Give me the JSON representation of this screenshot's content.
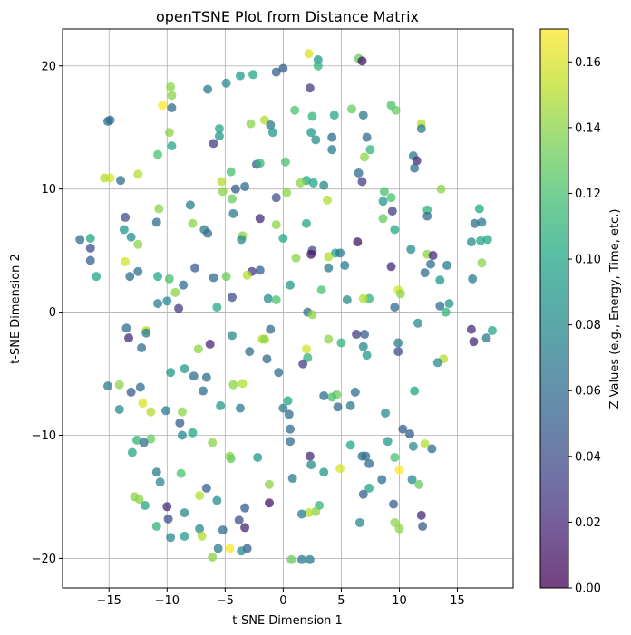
{
  "chart_data": {
    "type": "scatter",
    "title": "openTSNE Plot from Distance Matrix",
    "xlabel": "t-SNE Dimension 1",
    "ylabel": "t-SNE Dimension 2",
    "colorbar_label": "Z Values (e.g., Energy, Time, etc.)",
    "xlim": [
      -19,
      19.8
    ],
    "ylim": [
      -22.4,
      23
    ],
    "clim": [
      0,
      0.17
    ],
    "xticks": [
      -15,
      -10,
      -5,
      0,
      5,
      10,
      15
    ],
    "yticks": [
      -20,
      -10,
      0,
      10,
      20
    ],
    "cticks": [
      0.0,
      0.02,
      0.04,
      0.06,
      0.08,
      0.1,
      0.12,
      0.14,
      0.16
    ],
    "xtick_labels": [
      "−15",
      "−10",
      "−5",
      "0",
      "5",
      "10",
      "15"
    ],
    "ytick_labels": [
      "−20",
      "−10",
      "0",
      "10",
      "20"
    ],
    "ctick_labels": [
      "0.00",
      "0.02",
      "0.04",
      "0.06",
      "0.08",
      "0.10",
      "0.12",
      "0.14",
      "0.16"
    ],
    "grid": true,
    "colormap": "viridis",
    "marker_alpha": 0.75,
    "points": [
      [
        2.2,
        21.0,
        0.16
      ],
      [
        6.5,
        20.6,
        0.13
      ],
      [
        6.8,
        20.4,
        0.01
      ],
      [
        3.0,
        20.5,
        0.09
      ],
      [
        3.0,
        20.0,
        0.11
      ],
      [
        0.0,
        19.8,
        0.05
      ],
      [
        -0.6,
        19.5,
        0.05
      ],
      [
        -3.7,
        19.2,
        0.09
      ],
      [
        -2.6,
        19.3,
        0.1
      ],
      [
        -4.9,
        18.6,
        0.08
      ],
      [
        -9.7,
        18.3,
        0.14
      ],
      [
        -6.5,
        18.1,
        0.07
      ],
      [
        2.3,
        18.2,
        0.03
      ],
      [
        -9.6,
        17.6,
        0.14
      ],
      [
        -10.4,
        16.8,
        0.17
      ],
      [
        -9.6,
        16.6,
        0.06
      ],
      [
        9.3,
        16.8,
        0.12
      ],
      [
        9.7,
        16.4,
        0.13
      ],
      [
        5.9,
        16.5,
        0.13
      ],
      [
        1.0,
        16.4,
        0.12
      ],
      [
        -14.9,
        15.6,
        0.06
      ],
      [
        -15.1,
        15.5,
        0.06
      ],
      [
        -1.6,
        15.6,
        0.15
      ],
      [
        2.5,
        15.9,
        0.11
      ],
      [
        4.4,
        16.0,
        0.1
      ],
      [
        6.9,
        16.0,
        0.07
      ],
      [
        11.9,
        15.3,
        0.15
      ],
      [
        -2.8,
        15.3,
        0.14
      ],
      [
        -1.1,
        15.2,
        0.07
      ],
      [
        11.9,
        14.9,
        0.07
      ],
      [
        -5.5,
        14.9,
        0.1
      ],
      [
        -9.8,
        14.6,
        0.14
      ],
      [
        -0.9,
        14.6,
        0.09
      ],
      [
        2.4,
        14.6,
        0.09
      ],
      [
        -5.5,
        14.3,
        0.09
      ],
      [
        4.2,
        14.2,
        0.06
      ],
      [
        7.2,
        14.2,
        0.06
      ],
      [
        2.8,
        14.0,
        0.08
      ],
      [
        -9.6,
        13.5,
        0.1
      ],
      [
        -6.0,
        13.7,
        0.03
      ],
      [
        7.5,
        13.2,
        0.11
      ],
      [
        4.2,
        13.2,
        0.07
      ],
      [
        -10.8,
        12.8,
        0.12
      ],
      [
        11.2,
        12.7,
        0.07
      ],
      [
        7.0,
        12.6,
        0.14
      ],
      [
        11.5,
        12.3,
        0.02
      ],
      [
        -2.3,
        12.0,
        0.05
      ],
      [
        -2.0,
        12.1,
        0.11
      ],
      [
        0.2,
        12.2,
        0.12
      ],
      [
        11.3,
        11.7,
        0.06
      ],
      [
        -4.5,
        11.4,
        0.12
      ],
      [
        6.5,
        11.3,
        0.06
      ],
      [
        -12.5,
        11.2,
        0.15
      ],
      [
        -14.9,
        10.9,
        0.16
      ],
      [
        -15.4,
        10.9,
        0.15
      ],
      [
        -14.0,
        10.7,
        0.06
      ],
      [
        -5.3,
        10.6,
        0.15
      ],
      [
        2.0,
        10.7,
        0.1
      ],
      [
        1.5,
        10.5,
        0.14
      ],
      [
        6.8,
        10.6,
        0.03
      ],
      [
        3.5,
        10.3,
        0.08
      ],
      [
        2.6,
        10.5,
        0.1
      ],
      [
        -3.3,
        10.2,
        0.06
      ],
      [
        -4.1,
        10.0,
        0.05
      ],
      [
        -5.2,
        9.8,
        0.14
      ],
      [
        8.7,
        9.8,
        0.12
      ],
      [
        13.6,
        10.0,
        0.14
      ],
      [
        0.3,
        9.7,
        0.14
      ],
      [
        -4.4,
        9.2,
        0.13
      ],
      [
        -0.6,
        9.3,
        0.04
      ],
      [
        9.3,
        9.3,
        0.12
      ],
      [
        8.6,
        9.0,
        0.09
      ],
      [
        3.8,
        9.1,
        0.15
      ],
      [
        -10.7,
        8.4,
        0.14
      ],
      [
        12.4,
        8.3,
        0.11
      ],
      [
        -8.0,
        8.7,
        0.07
      ],
      [
        16.9,
        8.4,
        0.1
      ],
      [
        -4.3,
        8.0,
        0.07
      ],
      [
        9.4,
        8.2,
        0.03
      ],
      [
        -13.6,
        7.7,
        0.04
      ],
      [
        12.4,
        7.8,
        0.06
      ],
      [
        8.6,
        7.6,
        0.13
      ],
      [
        -2.0,
        7.6,
        0.02
      ],
      [
        -10.9,
        7.3,
        0.06
      ],
      [
        -7.8,
        7.2,
        0.14
      ],
      [
        16.5,
        7.2,
        0.06
      ],
      [
        17.1,
        7.3,
        0.07
      ],
      [
        -0.6,
        7.1,
        0.14
      ],
      [
        2.0,
        7.2,
        0.1
      ],
      [
        9.6,
        6.7,
        0.1
      ],
      [
        -13.7,
        6.7,
        0.09
      ],
      [
        -6.8,
        6.7,
        0.07
      ],
      [
        -6.5,
        6.4,
        0.06
      ],
      [
        -3.5,
        6.2,
        0.14
      ],
      [
        -3.6,
        5.9,
        0.08
      ],
      [
        -13.1,
        6.1,
        0.08
      ],
      [
        -16.6,
        6.0,
        0.1
      ],
      [
        -17.5,
        5.9,
        0.06
      ],
      [
        0.0,
        6.0,
        0.1
      ],
      [
        -12.5,
        5.5,
        0.14
      ],
      [
        6.4,
        5.7,
        0.01
      ],
      [
        16.2,
        5.7,
        0.08
      ],
      [
        17.6,
        5.9,
        0.1
      ],
      [
        17.0,
        5.8,
        0.1
      ],
      [
        11.0,
        5.1,
        0.08
      ],
      [
        -16.6,
        5.2,
        0.04
      ],
      [
        2.5,
        5.0,
        0.04
      ],
      [
        4.5,
        4.8,
        0.1
      ],
      [
        4.9,
        4.8,
        0.07
      ],
      [
        2.4,
        4.7,
        0.01
      ],
      [
        12.4,
        4.7,
        0.14
      ],
      [
        12.9,
        4.6,
        0.02
      ],
      [
        3.9,
        4.5,
        0.15
      ],
      [
        1.1,
        4.4,
        0.14
      ],
      [
        -16.6,
        4.2,
        0.05
      ],
      [
        -13.6,
        4.1,
        0.16
      ],
      [
        12.7,
        3.9,
        0.06
      ],
      [
        17.1,
        4.0,
        0.14
      ],
      [
        14.1,
        3.8,
        0.07
      ],
      [
        5.3,
        3.8,
        0.07
      ],
      [
        -7.6,
        3.6,
        0.05
      ],
      [
        -2.0,
        3.4,
        0.05
      ],
      [
        -2.7,
        3.3,
        0.03
      ],
      [
        3.9,
        3.6,
        0.07
      ],
      [
        9.3,
        3.7,
        0.02
      ],
      [
        12.2,
        3.2,
        0.06
      ],
      [
        -12.5,
        3.3,
        0.06
      ],
      [
        -3.1,
        3.0,
        0.15
      ],
      [
        -4.9,
        2.9,
        0.13
      ],
      [
        -16.1,
        2.9,
        0.1
      ],
      [
        -13.2,
        2.9,
        0.06
      ],
      [
        -10.8,
        2.9,
        0.1
      ],
      [
        -6.0,
        2.8,
        0.06
      ],
      [
        16.3,
        2.7,
        0.07
      ],
      [
        13.5,
        2.6,
        0.09
      ],
      [
        0.6,
        2.2,
        0.09
      ],
      [
        -8.6,
        2.2,
        0.06
      ],
      [
        -9.8,
        2.7,
        0.12
      ],
      [
        -9.3,
        1.6,
        0.14
      ],
      [
        3.3,
        1.8,
        0.12
      ],
      [
        9.9,
        1.8,
        0.16
      ],
      [
        10.1,
        1.5,
        0.14
      ],
      [
        -4.4,
        1.2,
        0.04
      ],
      [
        -10.0,
        0.9,
        0.08
      ],
      [
        -10.8,
        0.7,
        0.07
      ],
      [
        -1.3,
        1.1,
        0.08
      ],
      [
        -0.6,
        1.0,
        0.12
      ],
      [
        5.5,
        1.0,
        0.08
      ],
      [
        7.4,
        1.1,
        0.11
      ],
      [
        6.9,
        1.1,
        0.15
      ],
      [
        13.5,
        0.5,
        0.06
      ],
      [
        14.3,
        0.7,
        0.09
      ],
      [
        -5.7,
        0.4,
        0.1
      ],
      [
        -9.0,
        0.3,
        0.03
      ],
      [
        9.6,
        0.4,
        0.06
      ],
      [
        14.0,
        0.0,
        0.11
      ],
      [
        2.1,
        0.0,
        0.06
      ],
      [
        2.5,
        -0.2,
        0.14
      ],
      [
        11.6,
        -0.9,
        0.08
      ],
      [
        -13.5,
        -1.3,
        0.06
      ],
      [
        -11.8,
        -1.5,
        0.15
      ],
      [
        -1.1,
        -1.4,
        0.06
      ],
      [
        6.3,
        -1.8,
        0.03
      ],
      [
        16.2,
        -1.4,
        0.02
      ],
      [
        18.0,
        -1.5,
        0.1
      ],
      [
        -11.8,
        -1.7,
        0.07
      ],
      [
        -4.4,
        -1.9,
        0.08
      ],
      [
        7.0,
        -1.8,
        0.05
      ],
      [
        17.5,
        -2.1,
        0.07
      ],
      [
        -13.3,
        -2.1,
        0.02
      ],
      [
        -1.8,
        -2.2,
        0.15
      ],
      [
        -1.6,
        -2.2,
        0.14
      ],
      [
        3.9,
        -2.2,
        0.14
      ],
      [
        9.9,
        -2.5,
        0.07
      ],
      [
        16.4,
        -2.4,
        0.02
      ],
      [
        -6.3,
        -2.6,
        0.02
      ],
      [
        5.0,
        -2.5,
        0.11
      ],
      [
        6.9,
        -2.8,
        0.08
      ],
      [
        -12.2,
        -2.9,
        0.06
      ],
      [
        -7.3,
        -3.0,
        0.14
      ],
      [
        2.0,
        -3.0,
        0.16
      ],
      [
        9.9,
        -3.2,
        0.04
      ],
      [
        -2.9,
        -3.2,
        0.06
      ],
      [
        7.2,
        -3.5,
        0.09
      ],
      [
        -1.4,
        -3.8,
        0.06
      ],
      [
        2.1,
        -3.7,
        0.11
      ],
      [
        13.8,
        -3.8,
        0.15
      ],
      [
        13.3,
        -4.1,
        0.08
      ],
      [
        1.7,
        -4.2,
        0.03
      ],
      [
        -0.4,
        -4.9,
        0.06
      ],
      [
        -8.5,
        -4.6,
        0.09
      ],
      [
        -9.7,
        -4.9,
        0.09
      ],
      [
        -7.7,
        -5.2,
        0.06
      ],
      [
        -6.6,
        -5.3,
        0.06
      ],
      [
        -4.3,
        -5.9,
        0.14
      ],
      [
        -3.5,
        -5.8,
        0.15
      ],
      [
        -14.1,
        -5.9,
        0.14
      ],
      [
        -15.1,
        -6.0,
        0.07
      ],
      [
        11.3,
        -6.4,
        0.1
      ],
      [
        -12.3,
        -6.1,
        0.06
      ],
      [
        -13.1,
        -6.5,
        0.05
      ],
      [
        -6.9,
        -6.4,
        0.06
      ],
      [
        6.2,
        -6.5,
        0.06
      ],
      [
        4.6,
        -6.7,
        0.13
      ],
      [
        4.2,
        -6.9,
        0.12
      ],
      [
        3.5,
        -6.8,
        0.06
      ],
      [
        -14.1,
        -7.9,
        0.08
      ],
      [
        0.4,
        -7.2,
        0.1
      ],
      [
        -5.4,
        -7.6,
        0.09
      ],
      [
        -12.1,
        -7.4,
        0.16
      ],
      [
        -3.7,
        -7.8,
        0.07
      ],
      [
        0.0,
        -7.8,
        0.07
      ],
      [
        5.8,
        -7.6,
        0.07
      ],
      [
        4.7,
        -7.7,
        0.06
      ],
      [
        8.8,
        -8.2,
        0.08
      ],
      [
        -10.1,
        -8.0,
        0.07
      ],
      [
        -11.4,
        -8.1,
        0.15
      ],
      [
        -8.7,
        -8.1,
        0.14
      ],
      [
        0.5,
        -8.3,
        0.06
      ],
      [
        -8.9,
        -9.0,
        0.05
      ],
      [
        0.6,
        -9.5,
        0.06
      ],
      [
        10.3,
        -9.5,
        0.05
      ],
      [
        -7.8,
        -9.8,
        0.1
      ],
      [
        10.9,
        -9.9,
        0.05
      ],
      [
        -8.7,
        -10.0,
        0.08
      ],
      [
        -12.6,
        -10.4,
        0.11
      ],
      [
        -11.4,
        -10.3,
        0.13
      ],
      [
        -12.0,
        -10.6,
        0.06
      ],
      [
        -6.1,
        -10.6,
        0.14
      ],
      [
        0.6,
        -10.5,
        0.06
      ],
      [
        5.8,
        -10.8,
        0.1
      ],
      [
        9.0,
        -10.5,
        0.09
      ],
      [
        12.2,
        -10.7,
        0.15
      ],
      [
        11.2,
        -10.9,
        0.08
      ],
      [
        12.8,
        -11.1,
        0.06
      ],
      [
        -13.0,
        -11.4,
        0.1
      ],
      [
        -4.6,
        -11.7,
        0.14
      ],
      [
        -4.5,
        -11.9,
        0.13
      ],
      [
        -2.2,
        -11.8,
        0.09
      ],
      [
        2.3,
        -11.7,
        0.02
      ],
      [
        7.1,
        -11.7,
        0.06
      ],
      [
        6.8,
        -11.7,
        0.06
      ],
      [
        9.6,
        -11.8,
        0.12
      ],
      [
        2.4,
        -12.4,
        0.08
      ],
      [
        7.4,
        -12.3,
        0.06
      ],
      [
        4.9,
        -12.7,
        0.16
      ],
      [
        10.0,
        -12.8,
        0.17
      ],
      [
        3.5,
        -13.0,
        0.09
      ],
      [
        -10.9,
        -13.0,
        0.07
      ],
      [
        11.1,
        -13.6,
        0.08
      ],
      [
        -8.8,
        -13.1,
        0.12
      ],
      [
        0.8,
        -13.5,
        0.07
      ],
      [
        8.5,
        -13.6,
        0.06
      ],
      [
        -10.6,
        -13.8,
        0.08
      ],
      [
        -1.2,
        -14.0,
        0.14
      ],
      [
        11.7,
        -14.0,
        0.13
      ],
      [
        -6.6,
        -14.3,
        0.05
      ],
      [
        7.4,
        -14.3,
        0.1
      ],
      [
        6.9,
        -14.8,
        0.05
      ],
      [
        -12.8,
        -15.0,
        0.14
      ],
      [
        -7.2,
        -14.9,
        0.15
      ],
      [
        -12.4,
        -15.2,
        0.14
      ],
      [
        -5.7,
        -15.3,
        0.08
      ],
      [
        -1.2,
        -15.5,
        0.01
      ],
      [
        3.1,
        -15.7,
        0.11
      ],
      [
        -10.0,
        -15.8,
        0.02
      ],
      [
        -11.9,
        -15.7,
        0.1
      ],
      [
        9.5,
        -15.6,
        0.05
      ],
      [
        -3.3,
        -15.9,
        0.05
      ],
      [
        2.8,
        -16.2,
        0.14
      ],
      [
        2.2,
        -16.3,
        0.15
      ],
      [
        1.6,
        -16.4,
        0.07
      ],
      [
        -8.5,
        -16.3,
        0.08
      ],
      [
        11.9,
        -16.5,
        0.02
      ],
      [
        -9.9,
        -16.8,
        0.04
      ],
      [
        -3.8,
        -16.9,
        0.04
      ],
      [
        6.6,
        -17.1,
        0.08
      ],
      [
        9.6,
        -17.1,
        0.14
      ],
      [
        10.0,
        -17.6,
        0.14
      ],
      [
        -10.9,
        -17.4,
        0.11
      ],
      [
        -3.3,
        -17.5,
        0.02
      ],
      [
        12.0,
        -17.4,
        0.05
      ],
      [
        -7.2,
        -17.6,
        0.08
      ],
      [
        -5.2,
        -17.7,
        0.06
      ],
      [
        -7.0,
        -18.2,
        0.15
      ],
      [
        -8.5,
        -18.2,
        0.09
      ],
      [
        -9.7,
        -18.3,
        0.08
      ],
      [
        -4.6,
        -19.2,
        0.17
      ],
      [
        -5.6,
        -19.2,
        0.07
      ],
      [
        -3.1,
        -19.2,
        0.05
      ],
      [
        -3.6,
        -19.4,
        0.08
      ],
      [
        -6.1,
        -19.9,
        0.14
      ],
      [
        0.7,
        -20.1,
        0.13
      ],
      [
        1.6,
        -20.1,
        0.07
      ],
      [
        2.3,
        -20.1,
        0.07
      ]
    ]
  }
}
